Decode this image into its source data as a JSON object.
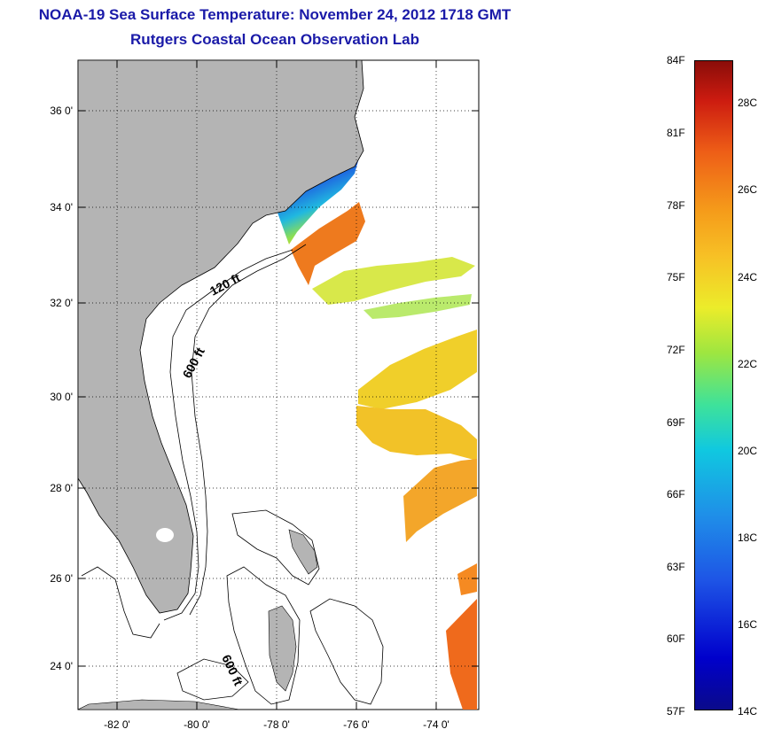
{
  "title": {
    "line1": "NOAA-19 Sea Surface Temperature:  November 24, 2012 1718 GMT",
    "line2": "Rutgers Coastal Ocean Observation Lab"
  },
  "map": {
    "lat_labels": [
      "36 0'",
      "34 0'",
      "32 0'",
      "30 0'",
      "28 0'",
      "26 0'",
      "24 0'"
    ],
    "lon_labels": [
      "-82 0'",
      "-80 0'",
      "-78 0'",
      "-76 0'",
      "-74 0'"
    ],
    "contour_labels": [
      "120 ft",
      "600 ft",
      "600 ft"
    ],
    "land_color": "#b4b4b4"
  },
  "colorbar": {
    "fahrenheit_labels": [
      "84F",
      "81F",
      "78F",
      "75F",
      "72F",
      "69F",
      "66F",
      "63F",
      "60F",
      "57F"
    ],
    "celsius_labels": [
      "28C",
      "26C",
      "24C",
      "22C",
      "20C",
      "18C",
      "16C",
      "14C"
    ],
    "colors": [
      "#0a0a8a",
      "#1e55e6",
      "#10c8e0",
      "#9ee640",
      "#ecec2a",
      "#f59b1a",
      "#ee5e17",
      "#8a0d09"
    ]
  }
}
